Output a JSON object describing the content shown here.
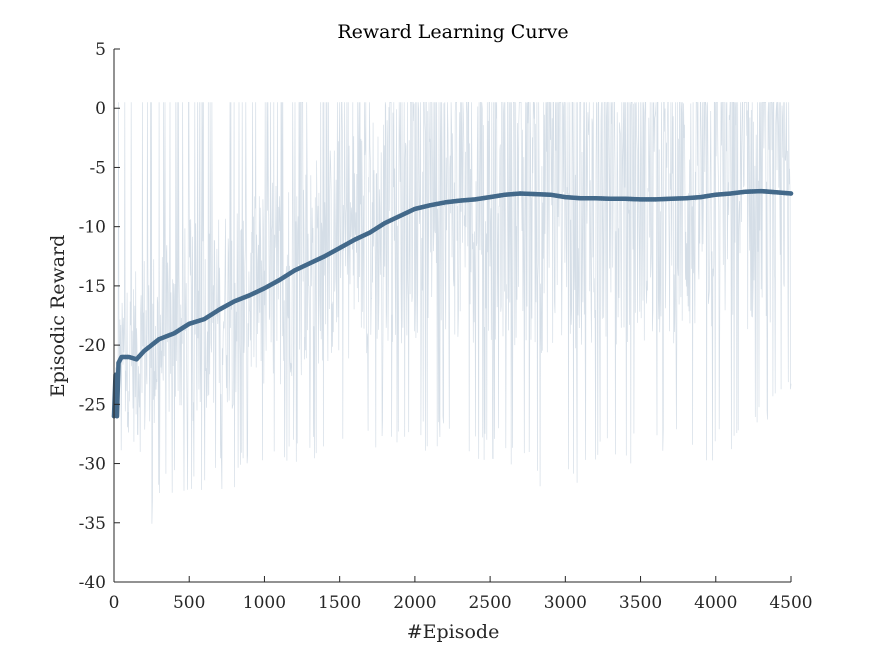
{
  "chart_data": {
    "type": "line",
    "title": "Reward Learning Curve",
    "xlabel": "#Episode",
    "ylabel": "Episodic Reward",
    "xlim": [
      0,
      4500
    ],
    "ylim": [
      -40,
      5
    ],
    "xticks": [
      0,
      500,
      1000,
      1500,
      2000,
      2500,
      3000,
      3500,
      4000,
      4500
    ],
    "yticks": [
      5,
      0,
      -5,
      -10,
      -15,
      -20,
      -25,
      -30,
      -35,
      -40
    ],
    "grid": false,
    "legend": "none",
    "colors": {
      "raw": "#b3c3d3",
      "smoothed": "#43698a",
      "axis": "#262626"
    },
    "series": [
      {
        "kind": "raw",
        "x_start": 0,
        "x_end": 4500,
        "y_max": 0.5,
        "min_envelope": [
          [
            0,
            -26
          ],
          [
            100,
            -33
          ],
          [
            200,
            -37
          ],
          [
            300,
            -34
          ],
          [
            400,
            -33
          ],
          [
            500,
            -35
          ],
          [
            600,
            -32
          ],
          [
            700,
            -32
          ],
          [
            800,
            -33
          ],
          [
            900,
            -30
          ],
          [
            1000,
            -32
          ],
          [
            1100,
            -31
          ],
          [
            1200,
            -30
          ],
          [
            1300,
            -30
          ],
          [
            1400,
            -29
          ],
          [
            1500,
            -30
          ],
          [
            1600,
            -29
          ],
          [
            1700,
            -29
          ],
          [
            1800,
            -29
          ],
          [
            1900,
            -29
          ],
          [
            2000,
            -29
          ],
          [
            2200,
            -29
          ],
          [
            2400,
            -30
          ],
          [
            2600,
            -30
          ],
          [
            2800,
            -32
          ],
          [
            3000,
            -33
          ],
          [
            3200,
            -30
          ],
          [
            3400,
            -30
          ],
          [
            3600,
            -30
          ],
          [
            3800,
            -30
          ],
          [
            4000,
            -30
          ],
          [
            4200,
            -29
          ],
          [
            4400,
            -27
          ],
          [
            4500,
            -25
          ]
        ]
      },
      {
        "kind": "smoothed",
        "points": [
          [
            0,
            -26
          ],
          [
            10,
            -22.5
          ],
          [
            20,
            -26
          ],
          [
            30,
            -21.5
          ],
          [
            50,
            -21
          ],
          [
            100,
            -21
          ],
          [
            150,
            -21.2
          ],
          [
            200,
            -20.5
          ],
          [
            300,
            -19.5
          ],
          [
            400,
            -19
          ],
          [
            500,
            -18.2
          ],
          [
            600,
            -17.8
          ],
          [
            700,
            -17
          ],
          [
            800,
            -16.3
          ],
          [
            900,
            -15.8
          ],
          [
            1000,
            -15.2
          ],
          [
            1100,
            -14.5
          ],
          [
            1200,
            -13.7
          ],
          [
            1300,
            -13.1
          ],
          [
            1400,
            -12.5
          ],
          [
            1500,
            -11.8
          ],
          [
            1600,
            -11.1
          ],
          [
            1700,
            -10.5
          ],
          [
            1800,
            -9.7
          ],
          [
            1900,
            -9.1
          ],
          [
            2000,
            -8.5
          ],
          [
            2100,
            -8.2
          ],
          [
            2200,
            -7.95
          ],
          [
            2300,
            -7.8
          ],
          [
            2400,
            -7.7
          ],
          [
            2500,
            -7.5
          ],
          [
            2600,
            -7.3
          ],
          [
            2700,
            -7.2
          ],
          [
            2800,
            -7.25
          ],
          [
            2900,
            -7.3
          ],
          [
            3000,
            -7.5
          ],
          [
            3100,
            -7.6
          ],
          [
            3200,
            -7.6
          ],
          [
            3300,
            -7.65
          ],
          [
            3400,
            -7.65
          ],
          [
            3500,
            -7.7
          ],
          [
            3600,
            -7.7
          ],
          [
            3700,
            -7.65
          ],
          [
            3800,
            -7.6
          ],
          [
            3900,
            -7.5
          ],
          [
            4000,
            -7.3
          ],
          [
            4100,
            -7.2
          ],
          [
            4200,
            -7.05
          ],
          [
            4300,
            -7.0
          ],
          [
            4400,
            -7.1
          ],
          [
            4500,
            -7.2
          ]
        ]
      }
    ]
  }
}
